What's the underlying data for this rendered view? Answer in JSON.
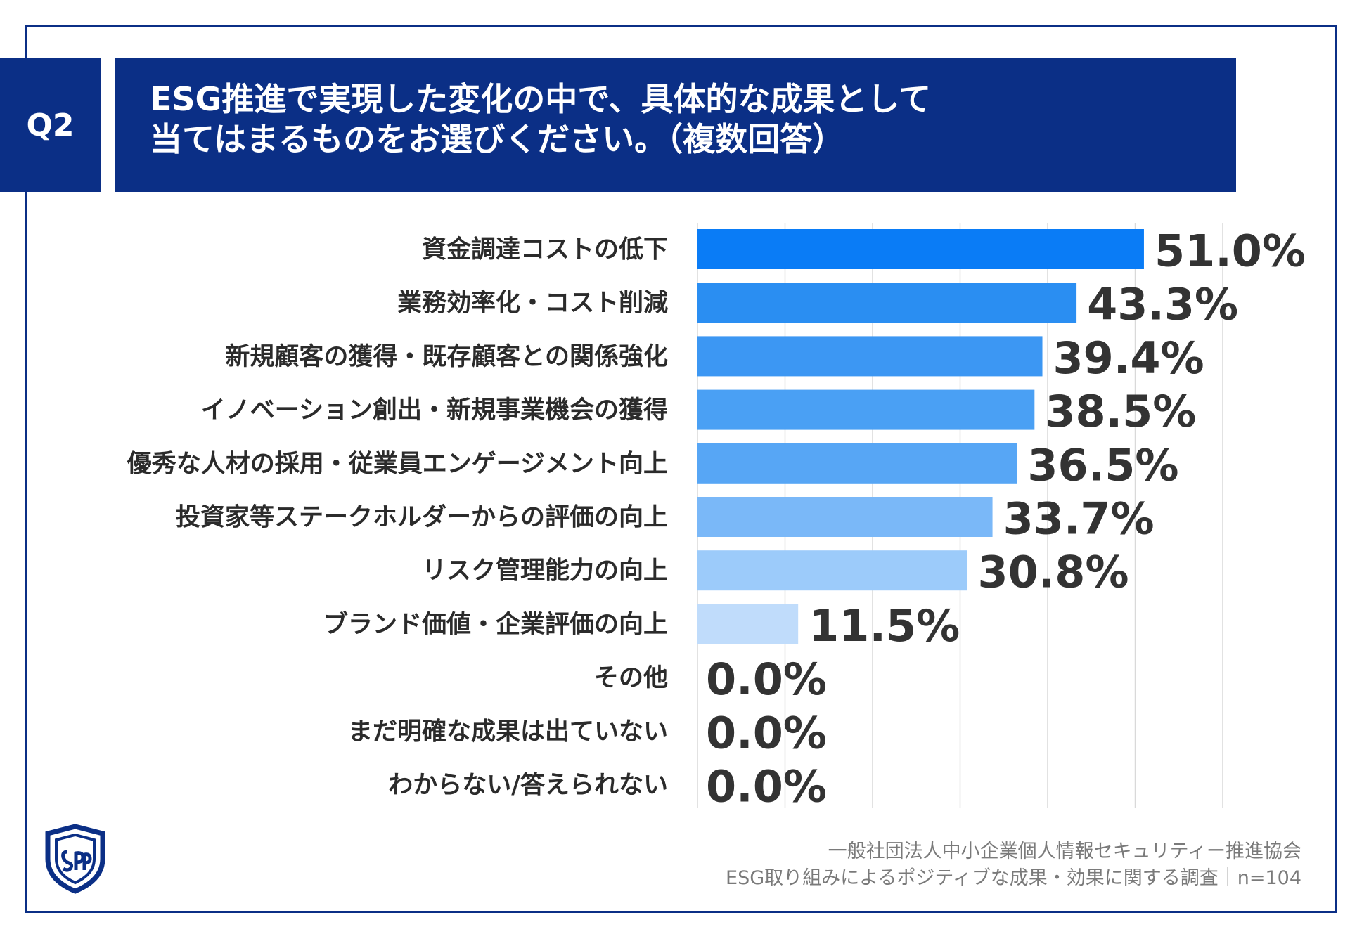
{
  "header": {
    "badge": "Q2",
    "title_line1": "ESG推進で実現した変化の中で、具体的な成果として",
    "title_line2": "当てはまるものをお選びください。（複数回答）"
  },
  "footer": {
    "line1": "一般社団法人中小企業個人情報セキュリティー推進協会",
    "line2": "ESG取り組みによるポジティブな成果・効果に関する調査｜n=104"
  },
  "colors": {
    "brand": "#0b2f86",
    "bars": [
      "#0a7cf6",
      "#2a8ef2",
      "#3c97f3",
      "#4aa0f4",
      "#57a6f5",
      "#7ab8f8",
      "#9ccbfa",
      "#c0dcfb"
    ],
    "grid": "#d9d9d9"
  },
  "chart_data": {
    "type": "bar",
    "orientation": "horizontal",
    "categories": [
      "資金調達コストの低下",
      "業務効率化・コスト削減",
      "新規顧客の獲得・既存顧客との関係強化",
      "イノベーション創出・新規事業機会の獲得",
      "優秀な人材の採用・従業員エンゲージメント向上",
      "投資家等ステークホルダーからの評価の向上",
      "リスク管理能力の向上",
      "ブランド価値・企業評価の向上",
      "その他",
      "まだ明確な成果は出ていない",
      "わからない/答えられない"
    ],
    "values": [
      51.0,
      43.3,
      39.4,
      38.5,
      36.5,
      33.7,
      30.8,
      11.5,
      0.0,
      0.0,
      0.0
    ],
    "value_labels": [
      "51.0%",
      "43.3%",
      "39.4%",
      "38.5%",
      "36.5%",
      "33.7%",
      "30.8%",
      "11.5%",
      "0.0%",
      "0.0%",
      "0.0%"
    ],
    "xlim": [
      0,
      60
    ],
    "grid": true
  }
}
